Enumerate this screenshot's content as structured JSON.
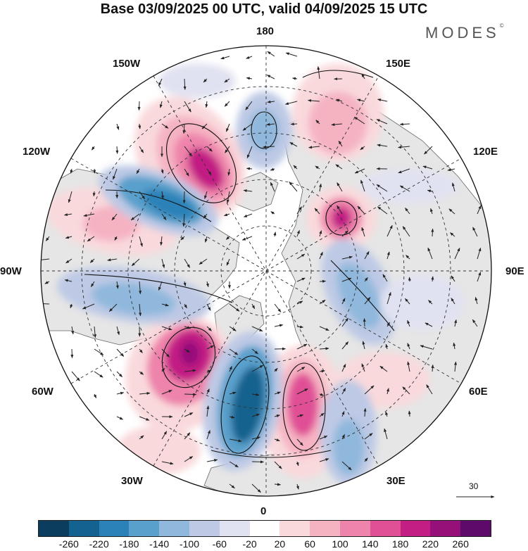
{
  "title": "Base 03/09/2025 00 UTC, valid 04/09/2025 15 UTC",
  "logo": {
    "text": "MODES",
    "mark": "©"
  },
  "longitude_labels": {
    "top": "180",
    "bottom": "0",
    "left": "90W",
    "right": "90E",
    "upper_left_1": "150W",
    "upper_left_2": "120W",
    "lower_left_1": "60W",
    "lower_left_2": "30W",
    "upper_right_1": "150E",
    "upper_right_2": "120E",
    "lower_right_1": "60E",
    "lower_right_2": "30E"
  },
  "reference_vector": {
    "value": "30"
  },
  "colorbar": {
    "colors": [
      "#0b3d5e",
      "#13628f",
      "#2a82b8",
      "#5aa0cc",
      "#8fb8dc",
      "#bdc9e5",
      "#e1e2f1",
      "#ffffff",
      "#f9d9dc",
      "#f5b3c2",
      "#ee83ab",
      "#e05096",
      "#c21e84",
      "#96107a",
      "#5e0a6b"
    ],
    "tick_labels": [
      "-260",
      "-220",
      "-180",
      "-140",
      "-100",
      "-60",
      "-20",
      "20",
      "60",
      "100",
      "140",
      "180",
      "220",
      "260"
    ]
  },
  "colors": {
    "land": "#e6e6e6",
    "ocean": "#ffffff",
    "grid": "#333333"
  }
}
